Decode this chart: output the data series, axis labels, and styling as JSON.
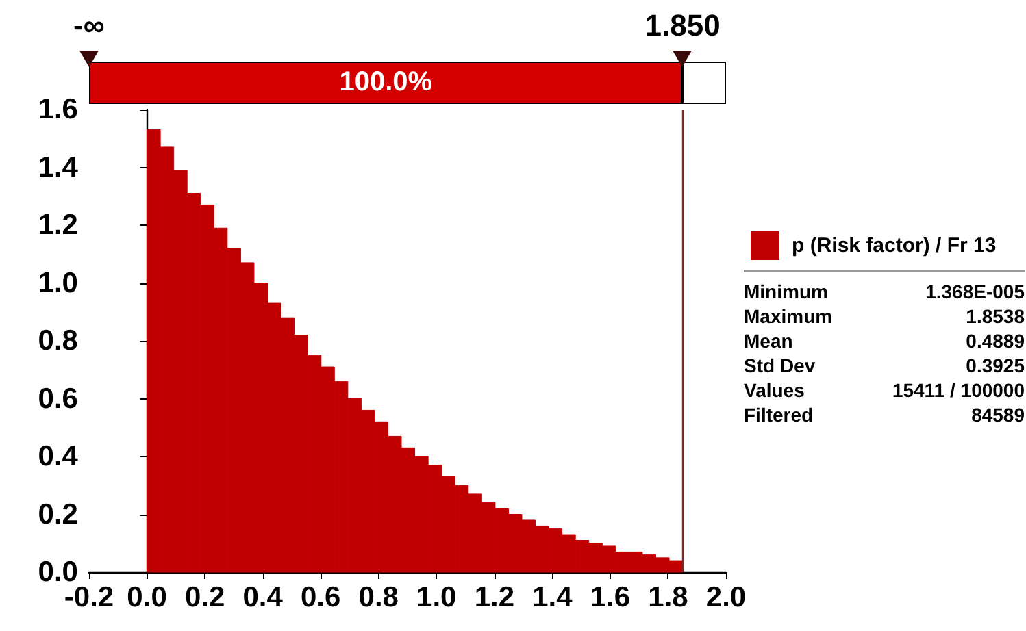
{
  "chart_data": {
    "type": "histogram",
    "bins": [
      0,
      0.04625,
      0.0925,
      0.13875,
      0.185,
      0.23125,
      0.2775,
      0.32375,
      0.37,
      0.41625,
      0.4625,
      0.50875,
      0.555,
      0.60125,
      0.6475,
      0.69375,
      0.74,
      0.78625,
      0.8325,
      0.87875,
      0.925,
      0.97125,
      1.0175,
      1.06375,
      1.11,
      1.15625,
      1.2025,
      1.24875,
      1.295,
      1.34125,
      1.3875,
      1.43375,
      1.48,
      1.52625,
      1.5725,
      1.61875,
      1.665,
      1.71125,
      1.7575,
      1.80375,
      1.85
    ],
    "series": [
      {
        "name": "p (Risk factor) / Fr 13",
        "color": "#c00000",
        "values": [
          1.53,
          1.47,
          1.39,
          1.31,
          1.27,
          1.19,
          1.12,
          1.07,
          1.0,
          0.93,
          0.88,
          0.82,
          0.75,
          0.71,
          0.66,
          0.6,
          0.56,
          0.52,
          0.47,
          0.43,
          0.4,
          0.37,
          0.33,
          0.3,
          0.27,
          0.24,
          0.22,
          0.2,
          0.18,
          0.16,
          0.15,
          0.13,
          0.11,
          0.1,
          0.09,
          0.07,
          0.07,
          0.06,
          0.05,
          0.04
        ]
      }
    ],
    "xlim": [
      -0.2,
      2.0
    ],
    "xticks": [
      -0.2,
      {
        "value": 0,
        "label": "0.0"
      },
      0.2,
      0.4,
      0.6,
      0.8,
      {
        "value": 1,
        "label": "1.0"
      },
      1.2,
      1.4,
      1.6,
      1.8,
      {
        "value": 2,
        "label": "2.0"
      }
    ],
    "ylim": [
      0,
      1.6
    ],
    "yticks": [
      {
        "value": 0,
        "label": "0.0"
      },
      0.2,
      0.4,
      0.6,
      0.8,
      {
        "value": 1,
        "label": "1.0"
      },
      1.2,
      1.4,
      1.6
    ],
    "ref_lines": [
      {
        "axis": "x",
        "value": 1.85,
        "label": "1.850",
        "color": "#7a2a2a"
      }
    ],
    "annotations": [
      "-∞",
      "100.0%",
      "Minimum",
      "1.368E-005",
      "Maximum",
      "1.8538",
      "Mean",
      "0.4889",
      "Std Dev",
      "0.3925",
      "Values",
      "15411 / 100000",
      "Filtered",
      "84589"
    ],
    "legend": "right",
    "grid": false
  }
}
